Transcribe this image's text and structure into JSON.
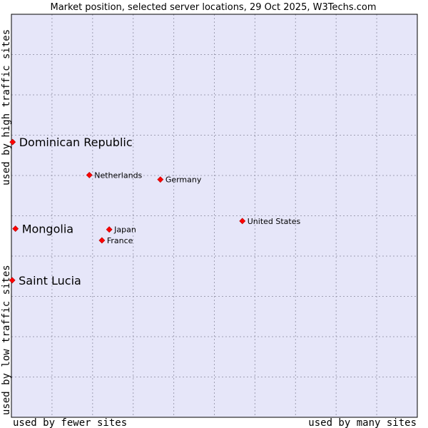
{
  "chart_data": {
    "type": "scatter",
    "title": "Market position, selected server locations, 29 Oct 2025, W3Techs.com",
    "xlabel_left": "used by fewer sites",
    "xlabel_right": "used by many sites",
    "ylabel_top": "used by high traffic sites",
    "ylabel_bottom": "used by low traffic sites",
    "xlim": [
      0,
      100
    ],
    "ylim": [
      0,
      100
    ],
    "grid": true,
    "colors": {
      "plot_bg": "#e6e6f9",
      "grid": "#9f9fb3",
      "point": "#ff0000",
      "border": "#000000"
    },
    "points": [
      {
        "name": "Dominican Republic",
        "x": 0.3,
        "y": 68.3,
        "highlight": true
      },
      {
        "name": "Mongolia",
        "x": 1.0,
        "y": 46.8,
        "highlight": true
      },
      {
        "name": "Saint Lucia",
        "x": 0.2,
        "y": 34.0,
        "highlight": true
      },
      {
        "name": "Netherlands",
        "x": 19.2,
        "y": 60.1,
        "highlight": false
      },
      {
        "name": "Germany",
        "x": 36.7,
        "y": 59.0,
        "highlight": false
      },
      {
        "name": "United States",
        "x": 56.9,
        "y": 48.7,
        "highlight": false
      },
      {
        "name": "Japan",
        "x": 24.1,
        "y": 46.6,
        "highlight": false
      },
      {
        "name": "France",
        "x": 22.3,
        "y": 43.9,
        "highlight": false
      }
    ]
  }
}
